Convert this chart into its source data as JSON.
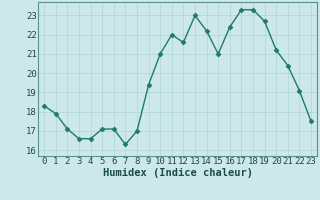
{
  "x": [
    0,
    1,
    2,
    3,
    4,
    5,
    6,
    7,
    8,
    9,
    10,
    11,
    12,
    13,
    14,
    15,
    16,
    17,
    18,
    19,
    20,
    21,
    22,
    23
  ],
  "y": [
    18.3,
    17.9,
    17.1,
    16.6,
    16.6,
    17.1,
    17.1,
    16.3,
    17.0,
    19.4,
    21.0,
    22.0,
    21.6,
    23.0,
    22.2,
    21.0,
    22.4,
    23.3,
    23.3,
    22.7,
    21.2,
    20.4,
    19.1,
    17.5
  ],
  "line_color": "#1f7a6a",
  "marker": "D",
  "marker_size": 2.5,
  "bg_color": "#cde8eb",
  "grid_color": "#b0d4d8",
  "xlabel": "Humidex (Indice chaleur)",
  "ylim": [
    15.7,
    23.7
  ],
  "yticks": [
    16,
    17,
    18,
    19,
    20,
    21,
    22,
    23
  ],
  "xlim": [
    -0.5,
    23.5
  ],
  "xticks": [
    0,
    1,
    2,
    3,
    4,
    5,
    6,
    7,
    8,
    9,
    10,
    11,
    12,
    13,
    14,
    15,
    16,
    17,
    18,
    19,
    20,
    21,
    22,
    23
  ],
  "xlabel_fontsize": 7.5,
  "tick_fontsize": 6.5,
  "line_width": 1.0,
  "spine_color": "#5a9090"
}
